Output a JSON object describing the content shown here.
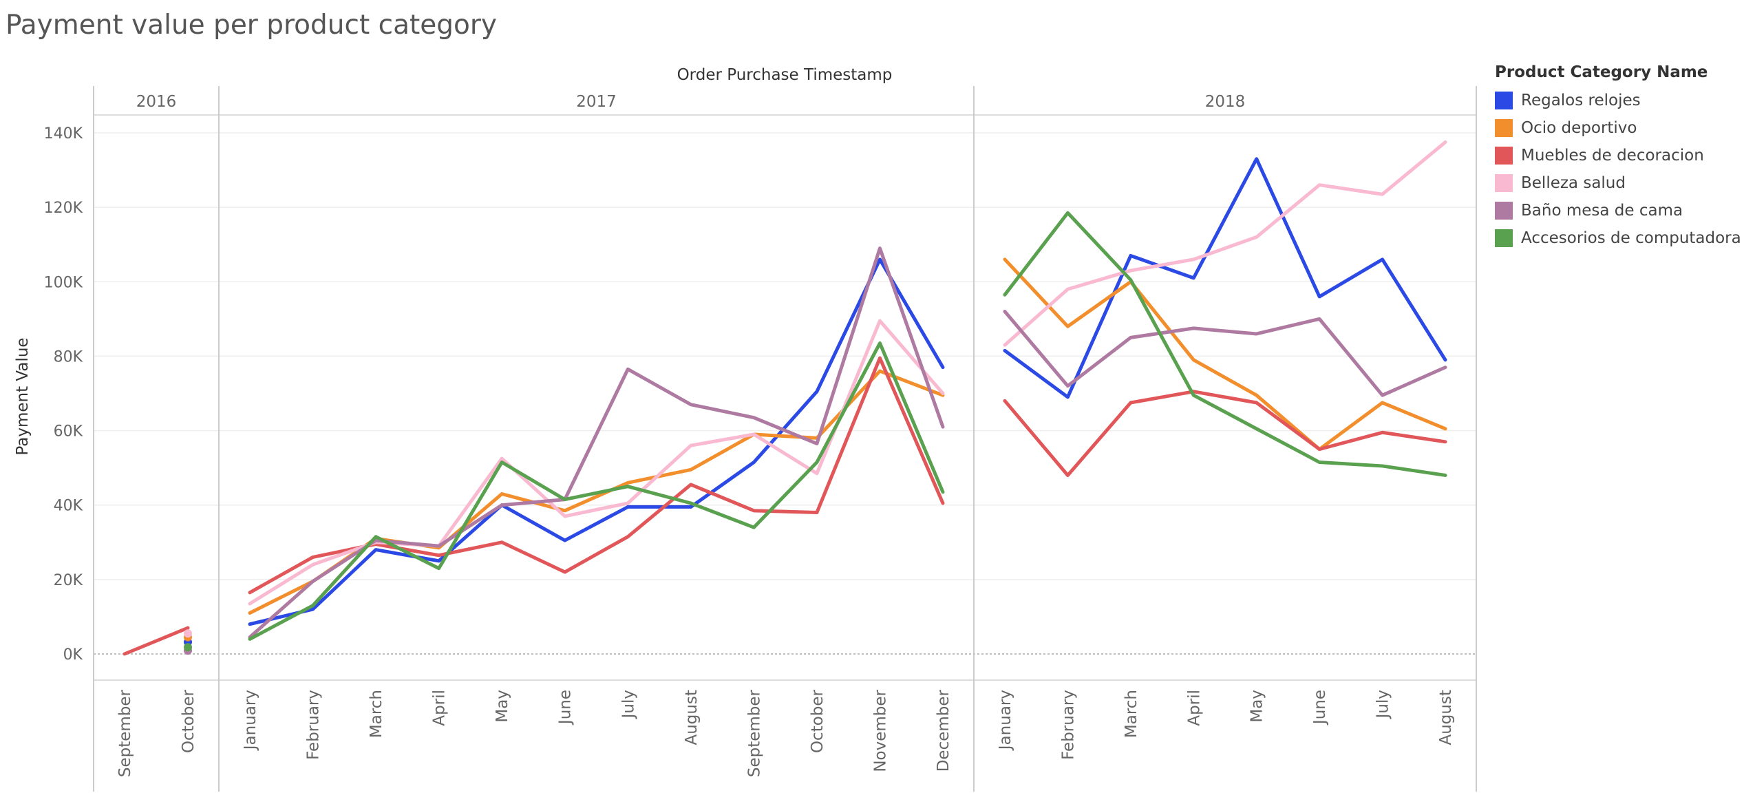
{
  "title": "Payment value per product category",
  "chart_data": {
    "type": "line",
    "title": "Payment value per product category",
    "xlabel": "Order Purchase Timestamp",
    "ylabel": "Payment Value",
    "ylim": [
      0,
      145000
    ],
    "yticks": [
      0,
      20000,
      40000,
      60000,
      80000,
      100000,
      120000,
      140000
    ],
    "ytick_labels": [
      "0K",
      "20K",
      "40K",
      "60K",
      "80K",
      "100K",
      "120K",
      "140K"
    ],
    "grid": true,
    "legend_position": "right",
    "legend_title": "Product Category Name",
    "years": [
      {
        "label": "2016",
        "months": [
          "September",
          "October"
        ]
      },
      {
        "label": "2017",
        "months": [
          "January",
          "February",
          "March",
          "April",
          "May",
          "June",
          "July",
          "August",
          "September",
          "October",
          "November",
          "December"
        ]
      },
      {
        "label": "2018",
        "months": [
          "January",
          "February",
          "March",
          "April",
          "May",
          "June",
          "July",
          "August"
        ]
      }
    ],
    "series": [
      {
        "name": "Regalos relojes",
        "color": "#2b49e4",
        "values": [
          [
            null,
            3200
          ],
          [
            8000,
            12000,
            28000,
            25000,
            40000,
            30500,
            39500,
            39500,
            51500,
            70500,
            106000,
            77000
          ],
          [
            81500,
            69000,
            107000,
            101000,
            133000,
            96000,
            106000,
            79000
          ]
        ]
      },
      {
        "name": "Ocio deportivo",
        "color": "#f28e2b",
        "values": [
          [
            null,
            4500
          ],
          [
            11000,
            19500,
            31000,
            28500,
            43000,
            38500,
            46000,
            49500,
            59000,
            58000,
            76000,
            69500
          ],
          [
            106000,
            88000,
            100000,
            79000,
            69500,
            55000,
            67500,
            60500
          ]
        ]
      },
      {
        "name": "Muebles de decoracion",
        "color": "#e15759",
        "values": [
          [
            0,
            7000
          ],
          [
            16500,
            26000,
            29500,
            26500,
            30000,
            22000,
            31500,
            45500,
            38500,
            38000,
            79500,
            40500
          ],
          [
            68000,
            48000,
            67500,
            70500,
            67500,
            55000,
            59500,
            57000
          ]
        ]
      },
      {
        "name": "Belleza salud",
        "color": "#f9bad1",
        "values": [
          [
            null,
            5500
          ],
          [
            13500,
            24000,
            30000,
            29000,
            52500,
            37000,
            40500,
            56000,
            59000,
            48500,
            89500,
            70000
          ],
          [
            83000,
            98000,
            103000,
            106000,
            112000,
            126000,
            123500,
            137500
          ]
        ]
      },
      {
        "name": "Baño mesa de cama",
        "color": "#af7aa1",
        "values": [
          [
            null,
            900
          ],
          [
            4500,
            19500,
            30500,
            29000,
            40000,
            41500,
            76500,
            67000,
            63500,
            56500,
            109000,
            61000
          ],
          [
            92000,
            72000,
            85000,
            87500,
            86000,
            90000,
            69500,
            77000
          ]
        ]
      },
      {
        "name": "Accesorios de computadora",
        "color": "#59a14f",
        "values": [
          [
            null,
            1800
          ],
          [
            4000,
            13000,
            31500,
            23000,
            51500,
            41500,
            45000,
            40500,
            34000,
            51500,
            83500,
            43500
          ],
          [
            96500,
            118500,
            100500,
            69500,
            60500,
            51500,
            50500,
            48000
          ]
        ]
      }
    ]
  }
}
